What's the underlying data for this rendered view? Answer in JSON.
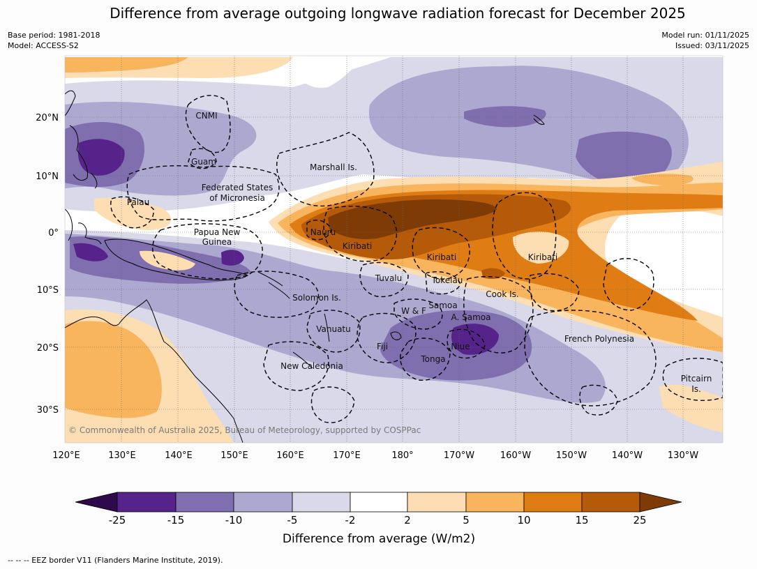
{
  "title": "Difference from average outgoing longwave radiation forecast for December 2025",
  "meta_left": [
    "Base period: 1981-2018",
    "Model: ACCESS-S2"
  ],
  "meta_right": [
    "Model run: 01/11/2025",
    "Issued: 03/11/2025"
  ],
  "copyright": "© Commonwealth of Australia 2025, Bureau of Meteorology, supported by COSPPac",
  "footer": "--  --  -- EEZ border V11 (Flanders Marine Institute, 2019).",
  "lon_ticks": [
    "120°E",
    "130°E",
    "140°E",
    "150°E",
    "160°E",
    "170°E",
    "180°",
    "170°W",
    "160°W",
    "150°W",
    "140°W",
    "130°W"
  ],
  "lat_ticks": [
    "20°N",
    "10°N",
    "0°",
    "10°S",
    "20°S",
    "30°S"
  ],
  "colorbar": {
    "label": "Difference from average (W/m2)",
    "ticks": [
      "-25",
      "-15",
      "-10",
      "-5",
      "-2",
      "2",
      "5",
      "10",
      "15",
      "25"
    ],
    "colors": {
      "lt_neg25": "#2e0a4b",
      "neg25_neg15": "#56238a",
      "neg15_neg10": "#7f6fae",
      "neg10_neg5": "#ada8d0",
      "neg5_neg2": "#d9d9ea",
      "neg2_2": "#ffffff",
      "p2_5": "#fddeb2",
      "p5_10": "#f9b45e",
      "p10_15": "#df7d14",
      "p15_25": "#b55a08",
      "gt_25": "#7e3b05"
    }
  },
  "regions": [
    "CNMI",
    "Guam",
    "Marshall Is.",
    "Federated States",
    "of Micronesia",
    "Palau",
    "Papua New",
    "Guinea",
    "Nauru",
    "Kiribati",
    "Kiribati",
    "Kiribati",
    "Tuvalu",
    "Tokelau",
    "Cook Is.",
    "Solomon Is.",
    "W & F",
    "Samoa",
    "A. Samoa",
    "Vanuatu",
    "Fiji",
    "Niue",
    "Tonga",
    "French Polynesia",
    "New Caledonia",
    "Pitcairn",
    "Is."
  ]
}
